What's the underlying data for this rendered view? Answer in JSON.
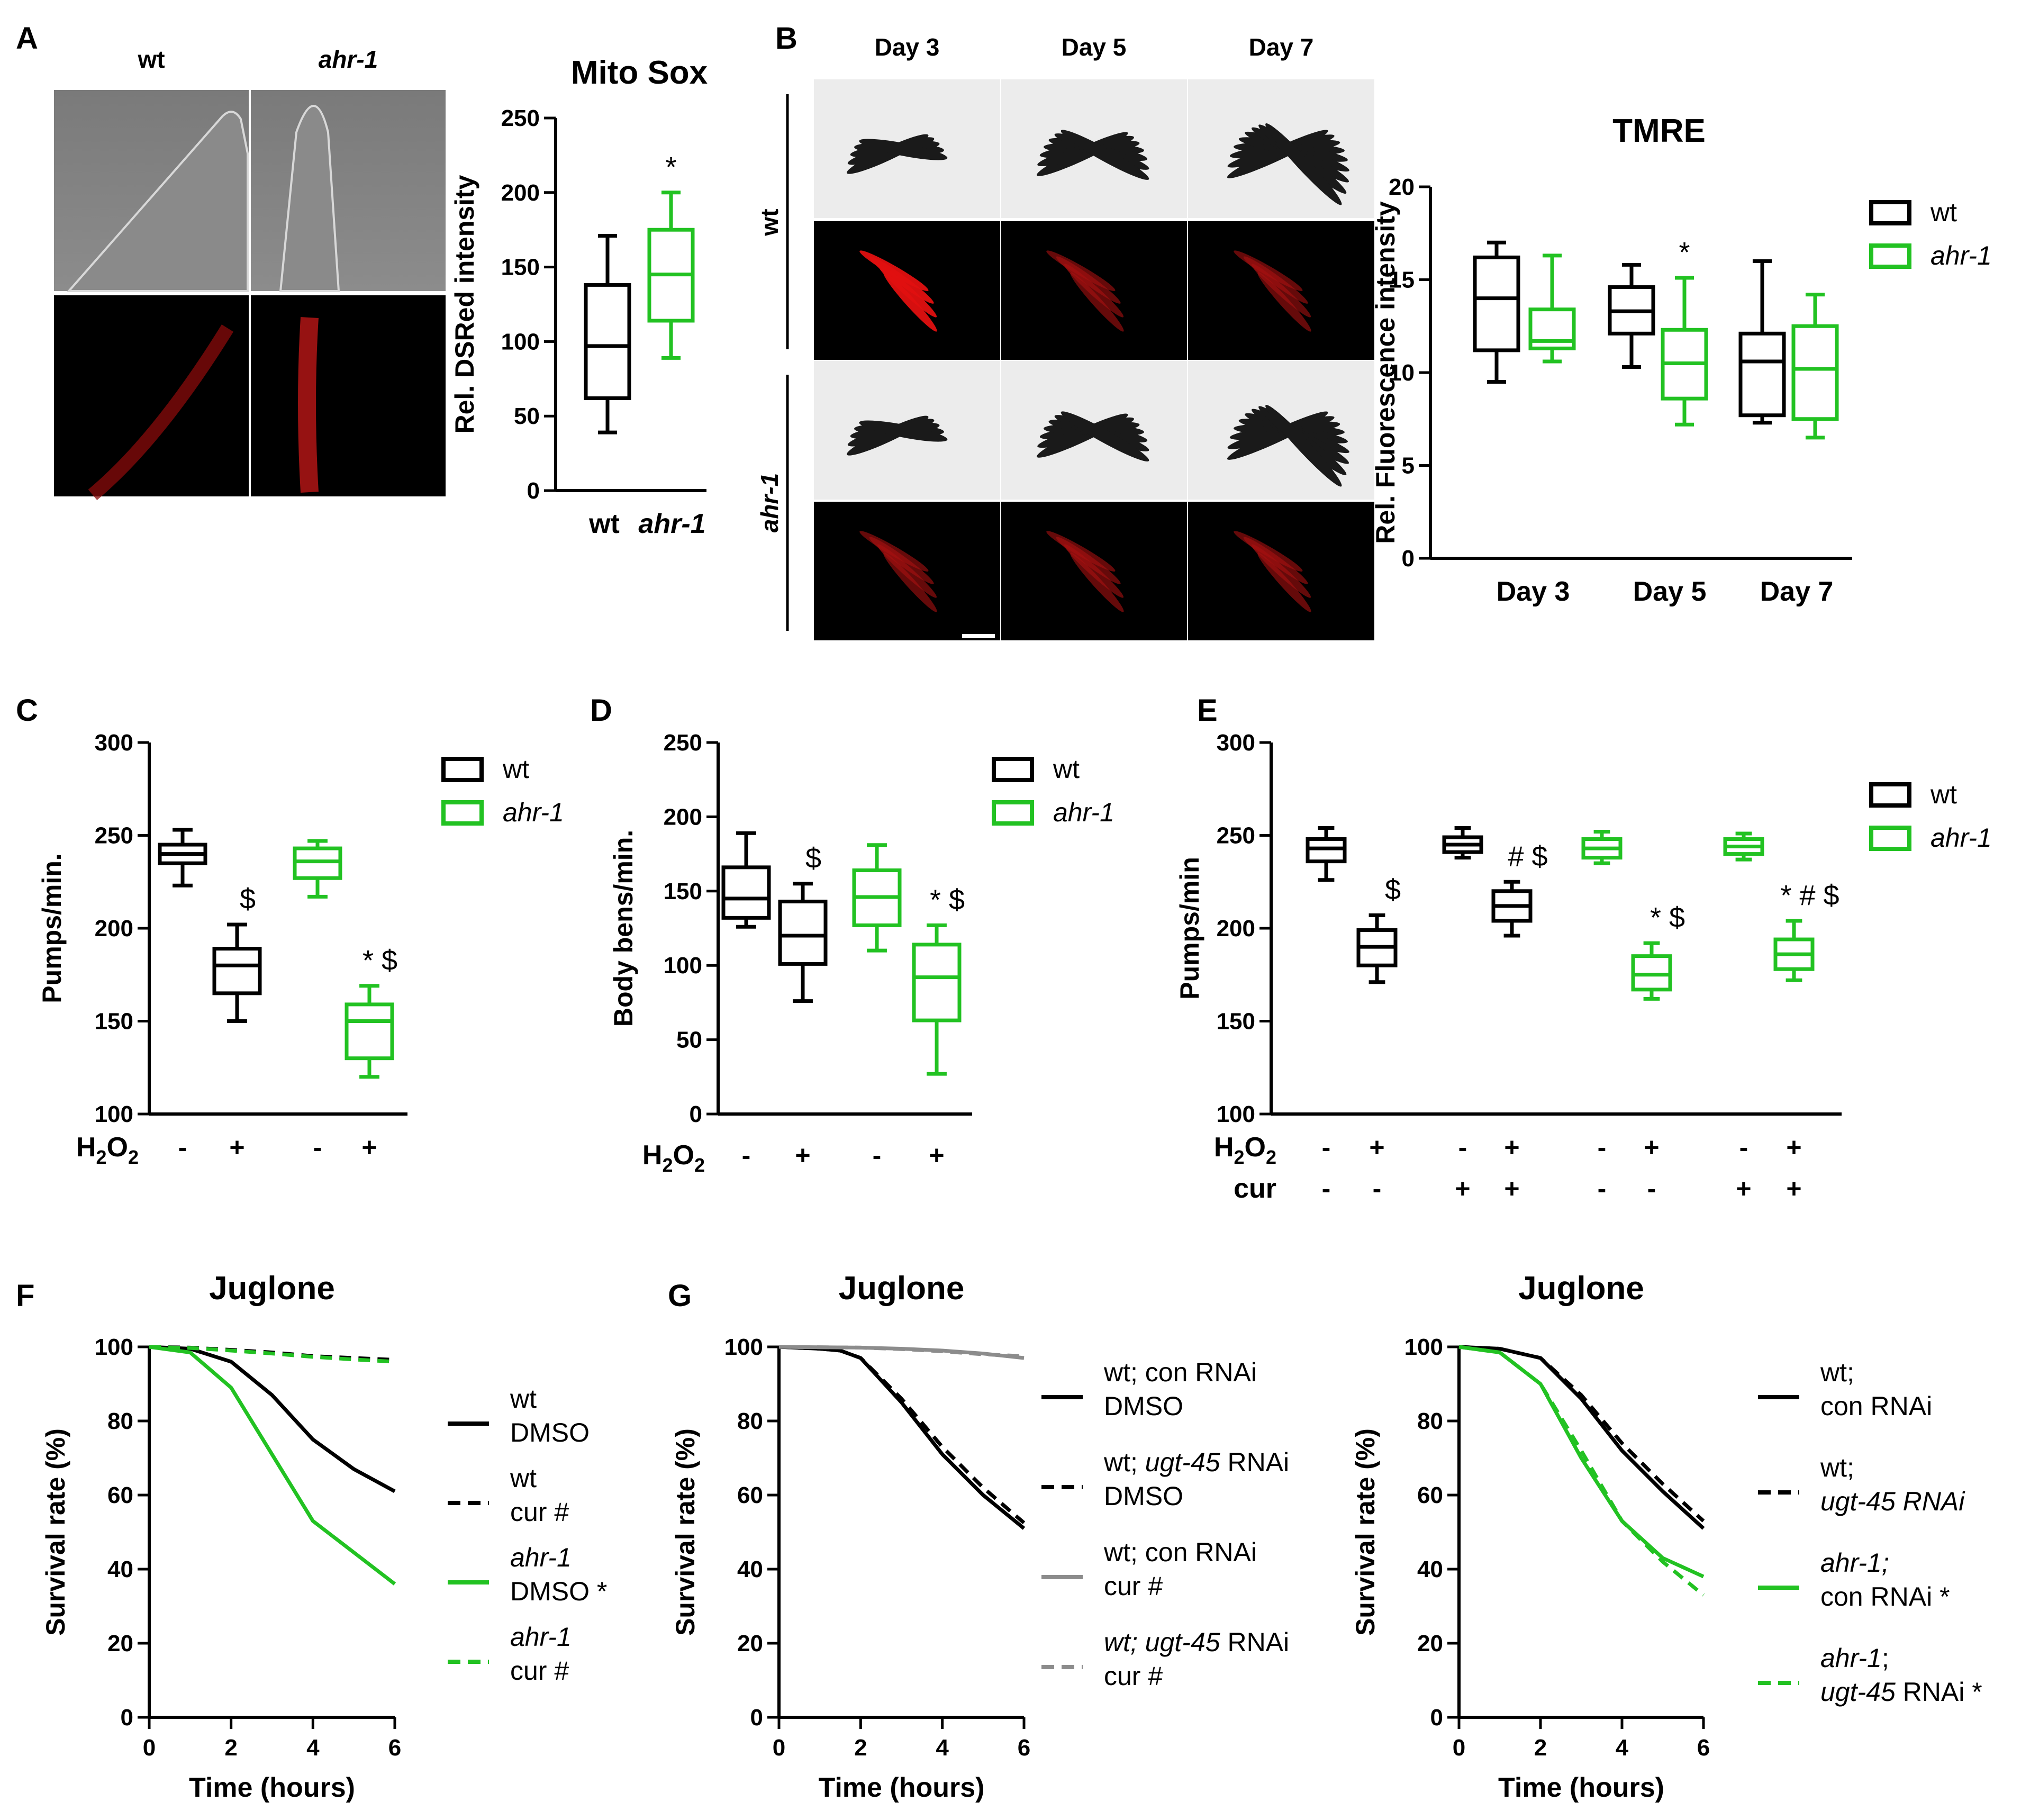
{
  "colors": {
    "wt": "#000000",
    "ahr1": "#22c222",
    "cur_gray": "#8c8c8c"
  },
  "chart_data": [
    {
      "id": "A",
      "panel_letter": "A",
      "micrograph": {
        "col_labels": [
          "wt",
          "ahr-1"
        ]
      },
      "type": "box",
      "title": "Mito Sox",
      "ylabel": "Rel. DSRed intensity",
      "ylim": [
        0,
        250
      ],
      "yticks": [
        0,
        50,
        100,
        150,
        200,
        250
      ],
      "categories": [
        "wt",
        "ahr-1"
      ],
      "boxes": [
        {
          "label": "wt",
          "group": "wt",
          "min": 39,
          "q1": 62,
          "median": 97,
          "q3": 138,
          "max": 171
        },
        {
          "label": "ahr-1",
          "group": "ahr1",
          "min": 89,
          "q1": 114,
          "median": 145,
          "q3": 175,
          "max": 200,
          "annotation": "*"
        }
      ]
    },
    {
      "id": "B",
      "panel_letter": "B",
      "micrograph": {
        "col_labels": [
          "Day 3",
          "Day 5",
          "Day 7"
        ],
        "row_labels": [
          "wt",
          "ahr-1"
        ]
      },
      "type": "box",
      "title": "TMRE",
      "ylabel": "Rel. Fluorescence intensity",
      "ylim": [
        0,
        20
      ],
      "yticks": [
        0,
        5,
        10,
        15,
        20
      ],
      "categories": [
        "Day 3",
        "Day 5",
        "Day 7"
      ],
      "legend": {
        "entries": [
          "wt",
          "ahr-1"
        ],
        "position": "right"
      },
      "boxes": [
        {
          "category": "Day 3",
          "group": "wt",
          "min": 9.5,
          "q1": 11.2,
          "median": 14.0,
          "q3": 16.2,
          "max": 17.0
        },
        {
          "category": "Day 3",
          "group": "ahr1",
          "min": 10.6,
          "q1": 11.3,
          "median": 11.7,
          "q3": 13.4,
          "max": 16.3
        },
        {
          "category": "Day 5",
          "group": "wt",
          "min": 10.3,
          "q1": 12.1,
          "median": 13.3,
          "q3": 14.6,
          "max": 15.8
        },
        {
          "category": "Day 5",
          "group": "ahr1",
          "min": 7.2,
          "q1": 8.6,
          "median": 10.5,
          "q3": 12.3,
          "max": 15.1,
          "annotation": "*"
        },
        {
          "category": "Day 7",
          "group": "wt",
          "min": 7.3,
          "q1": 7.7,
          "median": 10.6,
          "q3": 12.1,
          "max": 16.0
        },
        {
          "category": "Day 7",
          "group": "ahr1",
          "min": 6.5,
          "q1": 7.5,
          "median": 10.2,
          "q3": 12.5,
          "max": 14.2
        }
      ]
    },
    {
      "id": "C",
      "panel_letter": "C",
      "type": "box",
      "ylabel": "Pumps/min.",
      "ylim": [
        100,
        300
      ],
      "yticks": [
        100,
        150,
        200,
        250,
        300
      ],
      "legend": {
        "entries": [
          "wt",
          "ahr-1"
        ],
        "position": "right"
      },
      "treatment_rows": [
        {
          "label": "H",
          "sub": "2",
          "mid": "O",
          "sub2": "2",
          "values": [
            "-",
            "+",
            "-",
            "+"
          ]
        }
      ],
      "boxes": [
        {
          "group": "wt",
          "min": 223,
          "q1": 235,
          "median": 240,
          "q3": 245,
          "max": 253
        },
        {
          "group": "wt",
          "min": 150,
          "q1": 165,
          "median": 180,
          "q3": 189,
          "max": 202,
          "annotation": "$"
        },
        {
          "group": "ahr1",
          "min": 217,
          "q1": 227,
          "median": 236,
          "q3": 243,
          "max": 247
        },
        {
          "group": "ahr1",
          "min": 120,
          "q1": 130,
          "median": 150,
          "q3": 159,
          "max": 169,
          "annotation": "* $"
        }
      ]
    },
    {
      "id": "D",
      "panel_letter": "D",
      "type": "box",
      "ylabel": "Body bens/min.",
      "ylim": [
        0,
        250
      ],
      "yticks": [
        0,
        50,
        100,
        150,
        200,
        250
      ],
      "legend": {
        "entries": [
          "wt",
          "ahr-1"
        ],
        "position": "right"
      },
      "treatment_rows": [
        {
          "label": "H",
          "sub": "2",
          "mid": "O",
          "sub2": "2",
          "values": [
            "-",
            "+",
            "-",
            "+"
          ]
        }
      ],
      "boxes": [
        {
          "group": "wt",
          "min": 126,
          "q1": 132,
          "median": 145,
          "q3": 166,
          "max": 189
        },
        {
          "group": "wt",
          "min": 76,
          "q1": 101,
          "median": 120,
          "q3": 143,
          "max": 155,
          "annotation": "$"
        },
        {
          "group": "ahr1",
          "min": 110,
          "q1": 127,
          "median": 146,
          "q3": 164,
          "max": 181
        },
        {
          "group": "ahr1",
          "min": 27,
          "q1": 63,
          "median": 92,
          "q3": 114,
          "max": 127,
          "annotation": "* $"
        }
      ]
    },
    {
      "id": "E",
      "panel_letter": "E",
      "type": "box",
      "ylabel": "Pumps/min",
      "ylim": [
        100,
        300
      ],
      "yticks": [
        100,
        150,
        200,
        250,
        300
      ],
      "legend": {
        "entries": [
          "wt",
          "ahr-1"
        ],
        "position": "right"
      },
      "treatment_rows": [
        {
          "label": "H",
          "sub": "2",
          "mid": "O",
          "sub2": "2",
          "values": [
            "-",
            "+",
            "-",
            "+",
            "-",
            "+",
            "-",
            "+"
          ]
        },
        {
          "label": "cur",
          "values": [
            "-",
            "-",
            "+",
            "+",
            "-",
            "-",
            "+",
            "+"
          ]
        }
      ],
      "boxes": [
        {
          "group": "wt",
          "min": 226,
          "q1": 236,
          "median": 243,
          "q3": 248,
          "max": 254
        },
        {
          "group": "wt",
          "min": 171,
          "q1": 180,
          "median": 190,
          "q3": 199,
          "max": 207,
          "annotation": "$"
        },
        {
          "group": "wt",
          "min": 238,
          "q1": 241,
          "median": 245,
          "q3": 249,
          "max": 254
        },
        {
          "group": "wt",
          "min": 196,
          "q1": 204,
          "median": 212,
          "q3": 220,
          "max": 225,
          "annotation": "# $"
        },
        {
          "group": "ahr1",
          "min": 235,
          "q1": 238,
          "median": 243,
          "q3": 248,
          "max": 252
        },
        {
          "group": "ahr1",
          "min": 162,
          "q1": 167,
          "median": 175,
          "q3": 185,
          "max": 192,
          "annotation": "* $"
        },
        {
          "group": "ahr1",
          "min": 237,
          "q1": 240,
          "median": 244,
          "q3": 248,
          "max": 251
        },
        {
          "group": "ahr1",
          "min": 172,
          "q1": 178,
          "median": 186,
          "q3": 194,
          "max": 204,
          "annotation": "* # $"
        }
      ]
    },
    {
      "id": "F",
      "panel_letter": "F",
      "type": "line",
      "title": "Juglone",
      "xlabel": "Time (hours)",
      "ylabel": "Survival rate (%)",
      "xlim": [
        0,
        6
      ],
      "xticks": [
        0,
        2,
        4,
        6
      ],
      "ylim": [
        0,
        100
      ],
      "yticks": [
        0,
        20,
        40,
        60,
        80,
        100
      ],
      "series": [
        {
          "legend_lines": [
            [
              "wt"
            ],
            [
              "DMSO"
            ]
          ],
          "color_key": "wt",
          "dash": false,
          "x": [
            0,
            1,
            2,
            3,
            4,
            5,
            6
          ],
          "y": [
            100,
            99.5,
            96,
            87,
            75,
            67,
            61
          ]
        },
        {
          "legend_lines": [
            [
              "wt"
            ],
            [
              "cur #"
            ]
          ],
          "color_key": "wt",
          "dash": true,
          "x": [
            0,
            1,
            2,
            3,
            4,
            5,
            6
          ],
          "y": [
            100,
            99.8,
            99.2,
            98.5,
            97.5,
            97,
            96.5
          ]
        },
        {
          "legend_lines": [
            [
              "ahr-1"
            ],
            [
              "DMSO *"
            ]
          ],
          "color_key": "ahr1",
          "dash": false,
          "x": [
            0,
            1,
            2,
            3,
            4,
            5,
            6
          ],
          "y": [
            100,
            98.5,
            89,
            71,
            53,
            44.5,
            36
          ]
        },
        {
          "legend_lines": [
            [
              "ahr-1"
            ],
            [
              "cur #"
            ]
          ],
          "color_key": "ahr1",
          "dash": true,
          "x": [
            0,
            1,
            2,
            3,
            4,
            5,
            6
          ],
          "y": [
            100,
            99.7,
            99,
            98.2,
            97.3,
            96.6,
            96
          ]
        }
      ]
    },
    {
      "id": "G1",
      "panel_letter": "G",
      "type": "line",
      "title": "Juglone",
      "xlabel": "Time (hours)",
      "ylabel": "Survival rate (%)",
      "xlim": [
        0,
        6
      ],
      "xticks": [
        0,
        2,
        4,
        6
      ],
      "ylim": [
        0,
        100
      ],
      "yticks": [
        0,
        20,
        40,
        60,
        80,
        100
      ],
      "series": [
        {
          "legend_lines": [
            [
              "wt; con RNAi"
            ],
            [
              "DMSO"
            ]
          ],
          "color_key": "wt",
          "dash": false,
          "x": [
            0,
            1,
            1.5,
            2,
            3,
            4,
            5,
            6
          ],
          "y": [
            100,
            99.5,
            99,
            97,
            85,
            71,
            60,
            51
          ]
        },
        {
          "legend_lines": [
            [
              "wt; ",
              "ugt-45",
              " RNAi"
            ],
            [
              "DMSO"
            ]
          ],
          "color_key": "wt",
          "dash": true,
          "x": [
            0,
            1,
            1.5,
            2,
            3,
            4,
            5,
            6
          ],
          "y": [
            100,
            99.5,
            99,
            97,
            86,
            73,
            62,
            52.5
          ]
        },
        {
          "legend_lines": [
            [
              "wt; con RNAi"
            ],
            [
              "cur #"
            ]
          ],
          "color_key": "cur_gray",
          "dash": false,
          "x": [
            0,
            2,
            3,
            4,
            5,
            6
          ],
          "y": [
            100,
            99.8,
            99.5,
            99,
            98.2,
            97
          ]
        },
        {
          "legend_lines": [
            [
              "wt; ugt-45",
              " RNAi"
            ],
            [
              "cur #"
            ]
          ],
          "color_key": "cur_gray",
          "dash": true,
          "x": [
            0,
            2,
            3,
            4,
            5,
            6
          ],
          "y": [
            100,
            99.8,
            99.4,
            98.8,
            98,
            97.5
          ]
        }
      ]
    },
    {
      "id": "G2",
      "panel_letter": "",
      "type": "line",
      "title": "Juglone",
      "xlabel": "Time (hours)",
      "ylabel": "Survival rate (%)",
      "xlim": [
        0,
        6
      ],
      "xticks": [
        0,
        2,
        4,
        6
      ],
      "ylim": [
        0,
        100
      ],
      "yticks": [
        0,
        20,
        40,
        60,
        80,
        100
      ],
      "series": [
        {
          "legend_lines": [
            [
              "wt;"
            ],
            [
              "con RNAi"
            ]
          ],
          "color_key": "wt",
          "dash": false,
          "x": [
            0,
            1,
            2,
            3,
            4,
            5,
            6
          ],
          "y": [
            100,
            99.5,
            97,
            86,
            72,
            61,
            51
          ]
        },
        {
          "legend_lines": [
            [
              "wt;"
            ],
            [
              "ugt-45 RNAi"
            ]
          ],
          "color_key": "wt",
          "dash": true,
          "x": [
            0,
            1,
            2,
            3,
            4,
            5,
            6
          ],
          "y": [
            100,
            99.5,
            97,
            87,
            74,
            63,
            53
          ]
        },
        {
          "legend_lines": [
            [
              "ahr-1;"
            ],
            [
              "con RNAi  *"
            ]
          ],
          "color_key": "ahr1",
          "dash": false,
          "x": [
            0,
            1,
            2,
            3,
            4,
            5,
            6
          ],
          "y": [
            100,
            98.5,
            90,
            70,
            53,
            43,
            38
          ]
        },
        {
          "legend_lines": [
            [
              "ahr-1",
              ";"
            ],
            [
              "ugt-45",
              " RNAi  *"
            ]
          ],
          "color_key": "ahr1",
          "dash": true,
          "x": [
            0,
            1,
            2,
            3,
            4,
            5,
            6
          ],
          "y": [
            100,
            98.5,
            90,
            72,
            53,
            42,
            33
          ]
        }
      ]
    }
  ]
}
